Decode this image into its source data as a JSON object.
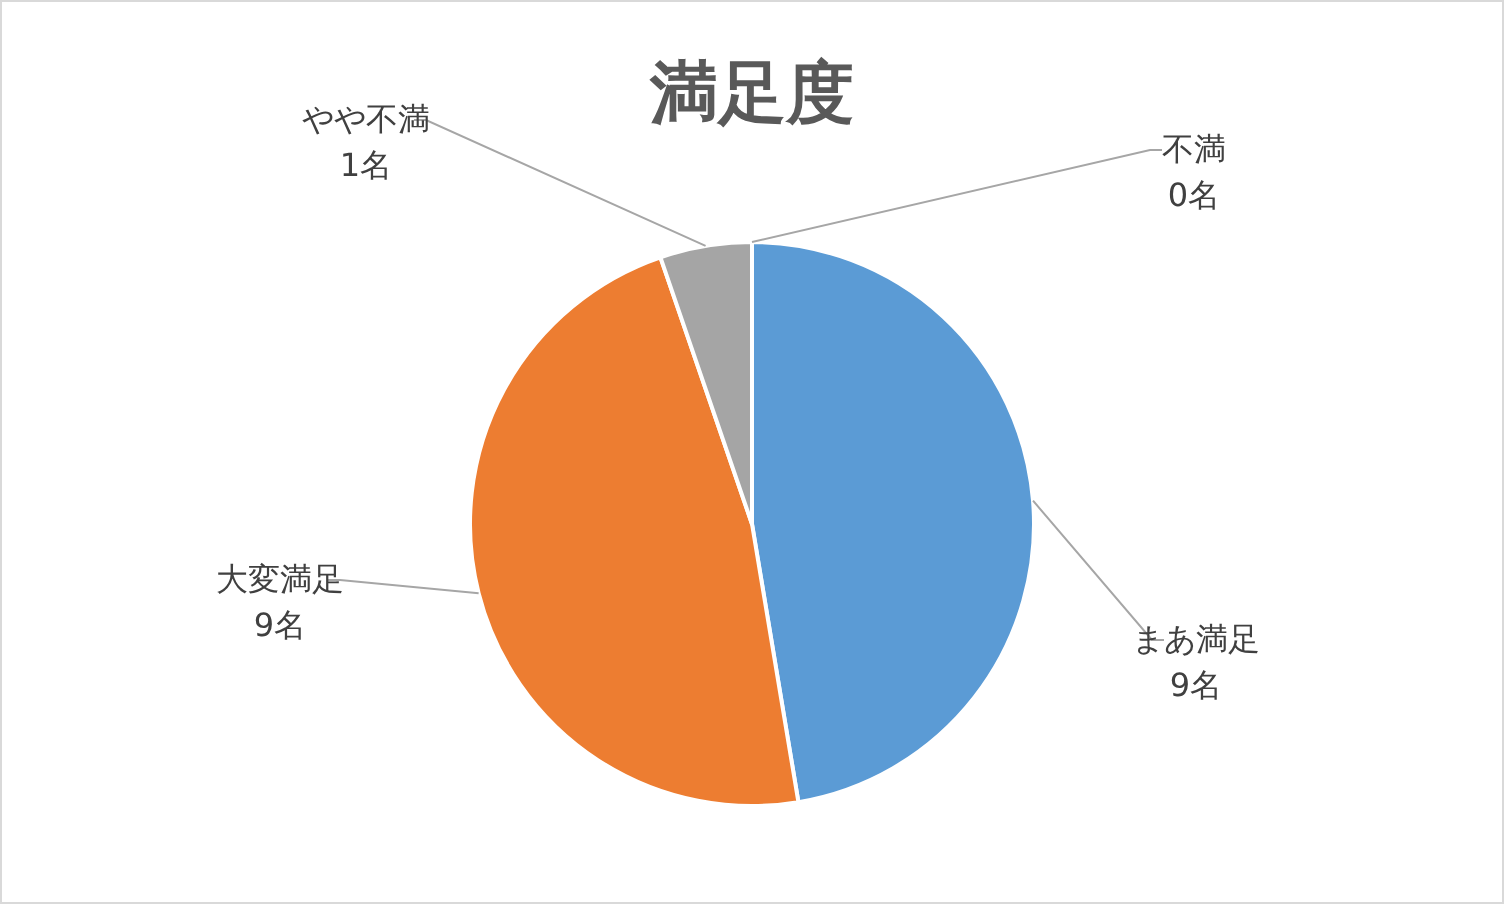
{
  "chart_data": {
    "type": "pie",
    "title": "満足度",
    "categories": [
      "まあ満足",
      "大変満足",
      "やや不満",
      "不満"
    ],
    "values": [
      9,
      9,
      1,
      0
    ],
    "value_labels": [
      "9名",
      "9名",
      "1名",
      "0名"
    ],
    "colors": [
      "#5b9bd5",
      "#ed7d31",
      "#a5a5a5",
      null
    ],
    "legend": false
  }
}
